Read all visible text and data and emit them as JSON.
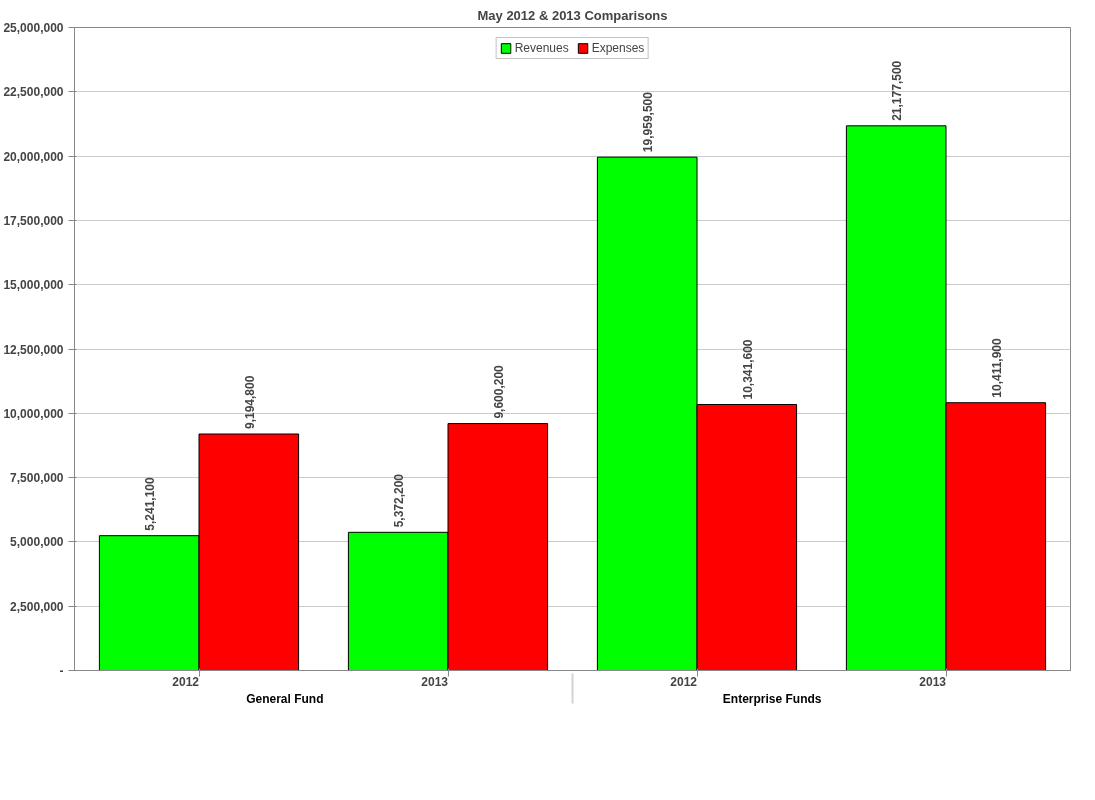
{
  "chart_data": {
    "type": "bar",
    "title": "May 2012 & 2013 Comparisons",
    "categories": [
      "2012",
      "2013",
      "2012",
      "2013"
    ],
    "annotations": [
      "General Fund",
      "Enterprise Funds"
    ],
    "series": [
      {
        "name": "Revenues",
        "color": "#00ff00",
        "values": [
          5241100,
          5372200,
          19959500,
          21177500
        ],
        "value_labels": [
          "5,241,100",
          "5,372,200",
          "19,959,500",
          "21,177,500"
        ]
      },
      {
        "name": "Expenses",
        "color": "#ff0000",
        "values": [
          9194800,
          9600200,
          10341600,
          10411900
        ],
        "value_labels": [
          "9,194,800",
          "9,600,200",
          "10,341,600",
          "10,411,900"
        ]
      }
    ],
    "ylim": [
      0,
      25000000
    ],
    "yticks": [
      {
        "value": 0,
        "label": "-"
      },
      {
        "value": 2500000,
        "label": "2,500,000"
      },
      {
        "value": 5000000,
        "label": "5,000,000"
      },
      {
        "value": 7500000,
        "label": "7,500,000"
      },
      {
        "value": 10000000,
        "label": "10,000,000"
      },
      {
        "value": 12500000,
        "label": "12,500,000"
      },
      {
        "value": 15000000,
        "label": "15,000,000"
      },
      {
        "value": 17500000,
        "label": "17,500,000"
      },
      {
        "value": 20000000,
        "label": "20,000,000"
      },
      {
        "value": 22500000,
        "label": "22,500,000"
      },
      {
        "value": 25000000,
        "label": "25,000,000"
      }
    ],
    "grid": "y",
    "legend": "top"
  }
}
